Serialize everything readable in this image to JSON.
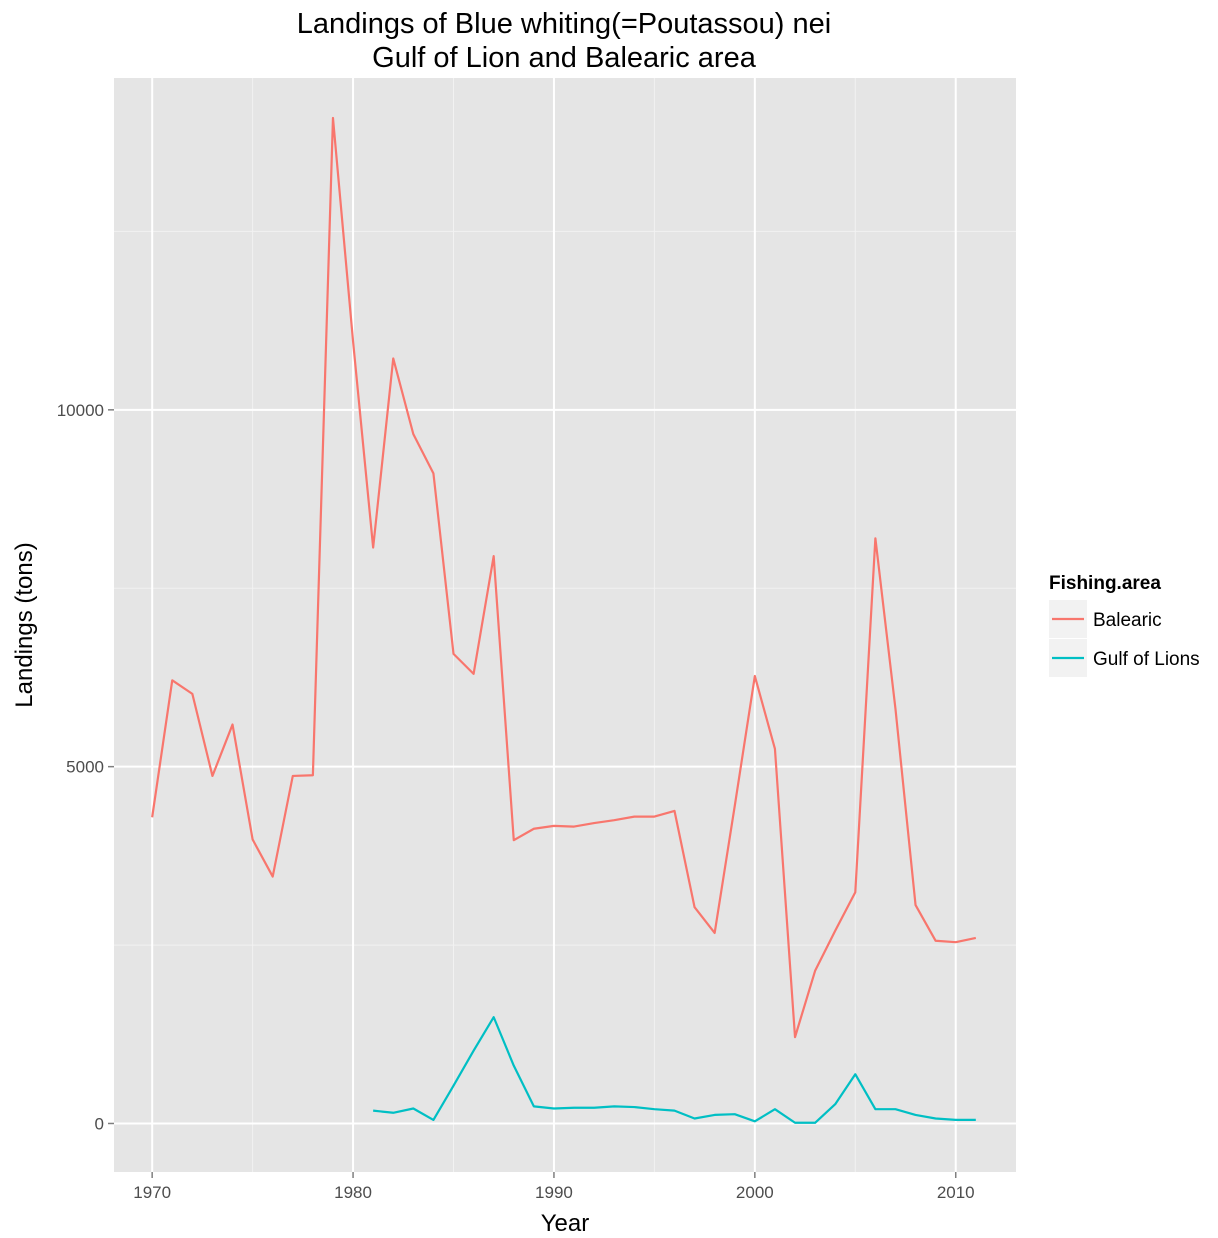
{
  "chart_data": {
    "type": "line",
    "title_lines": [
      "Landings of Blue whiting(=Poutassou) nei",
      "Gulf of Lion and Balearic area"
    ],
    "xlabel": "Year",
    "ylabel": "Landings (tons)",
    "xlim": [
      1968.1,
      2013.0
    ],
    "ylim": [
      -680,
      14650
    ],
    "x_ticks": [
      1970,
      1980,
      1990,
      2000,
      2010
    ],
    "x_tick_labels": [
      "1970",
      "1980",
      "1990",
      "2000",
      "2010"
    ],
    "y_ticks": [
      0,
      5000,
      10000
    ],
    "y_tick_labels": [
      "0",
      "5000",
      "10000"
    ],
    "x_minor_ticks": [
      1975,
      1985,
      1995,
      2005
    ],
    "y_minor_ticks": [
      2500,
      7500,
      12500
    ],
    "grid": true,
    "panel_color": "#e5e5e5",
    "grid_color": "#ffffff",
    "legend": {
      "title": "Fishing.area",
      "placement": "right"
    },
    "series": [
      {
        "name": "Balearic",
        "color": "#f8766d",
        "x": [
          1970,
          1971,
          1972,
          1973,
          1974,
          1975,
          1976,
          1977,
          1978,
          1979,
          1980,
          1981,
          1982,
          1983,
          1984,
          1985,
          1986,
          1987,
          1988,
          1989,
          1990,
          1991,
          1992,
          1993,
          1994,
          1995,
          1996,
          1997,
          1998,
          1999,
          2000,
          2001,
          2002,
          2003,
          2004,
          2005,
          2006,
          2007,
          2008,
          2009,
          2010,
          2011
        ],
        "y": [
          4290,
          6210,
          6020,
          4870,
          5590,
          3980,
          3460,
          4870,
          4880,
          14090,
          10960,
          8070,
          10720,
          9660,
          9110,
          6580,
          6300,
          7950,
          3970,
          4130,
          4170,
          4160,
          4210,
          4250,
          4300,
          4300,
          4380,
          3030,
          2670,
          4450,
          6270,
          5250,
          1210,
          2140,
          2700,
          3240,
          8200,
          5810,
          3060,
          2560,
          2540,
          2600
        ]
      },
      {
        "name": "Gulf of Lions",
        "color": "#00bfc4",
        "x": [
          1981,
          1982,
          1983,
          1984,
          1985,
          1986,
          1987,
          1988,
          1989,
          1990,
          1991,
          1992,
          1993,
          1994,
          1995,
          1996,
          1997,
          1998,
          1999,
          2000,
          2001,
          2002,
          2003,
          2004,
          2005,
          2006,
          2007,
          2008,
          2009,
          2010,
          2011
        ],
        "y": [
          180,
          150,
          210,
          50,
          530,
          1020,
          1490,
          810,
          240,
          210,
          220,
          220,
          240,
          230,
          200,
          180,
          70,
          120,
          130,
          30,
          200,
          10,
          10,
          270,
          690,
          200,
          200,
          120,
          70,
          50,
          50
        ]
      }
    ]
  }
}
